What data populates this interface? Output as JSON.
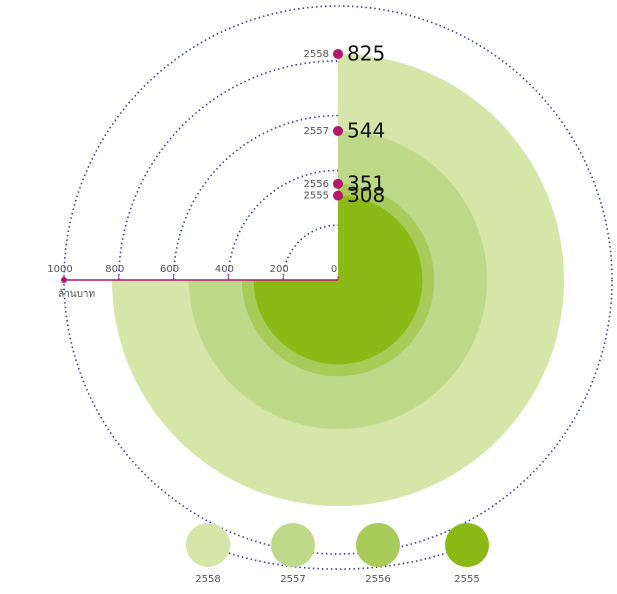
{
  "chart_data": {
    "type": "radial-bar",
    "categories": [
      "2558",
      "2557",
      "2556",
      "2555"
    ],
    "values": [
      825,
      544,
      351,
      308
    ],
    "colors": [
      "#d5e6a8",
      "#bfd98b",
      "#a8cb5a",
      "#8bba17"
    ],
    "marker_color": "#b5176e",
    "axis_label": "ล้านบาท",
    "xlim": [
      0,
      1000
    ],
    "xticks": [
      1000,
      800,
      600,
      400,
      200,
      0
    ]
  }
}
